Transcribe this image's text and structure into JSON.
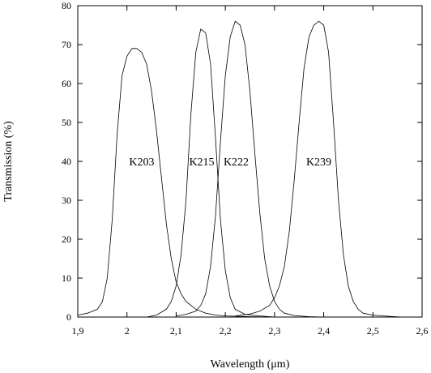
{
  "chart_data": {
    "type": "line",
    "title": "",
    "xlabel": "Wavelength (μm)",
    "ylabel": "Transmission (%)",
    "xlim": [
      1.9,
      2.6
    ],
    "ylim": [
      0,
      80
    ],
    "x_ticks": [
      1.9,
      2.0,
      2.1,
      2.2,
      2.3,
      2.4,
      2.5,
      2.6
    ],
    "x_tick_labels": [
      "1,9",
      "2",
      "2,1",
      "2,2",
      "2,3",
      "2,4",
      "2,5",
      "2,6"
    ],
    "y_ticks": [
      0,
      10,
      20,
      30,
      40,
      50,
      60,
      70,
      80
    ],
    "y_tick_labels": [
      "0",
      "10",
      "20",
      "30",
      "40",
      "50",
      "60",
      "70",
      "80"
    ],
    "grid": false,
    "legend": "none",
    "series": [
      {
        "name": "K203",
        "label_at": [
          2.03,
          40
        ],
        "x": [
          1.9,
          1.92,
          1.94,
          1.95,
          1.96,
          1.97,
          1.98,
          1.99,
          2.0,
          2.01,
          2.02,
          2.03,
          2.04,
          2.05,
          2.06,
          2.07,
          2.08,
          2.09,
          2.1,
          2.11,
          2.12,
          2.13,
          2.14,
          2.16,
          2.18,
          2.2,
          2.25,
          2.3
        ],
        "y": [
          0.5,
          1,
          2,
          4,
          10,
          25,
          47,
          62,
          67,
          69,
          69,
          68,
          65,
          58,
          48,
          36,
          24,
          15,
          9,
          6,
          4,
          3,
          2,
          1,
          0.5,
          0.3,
          0.1,
          0
        ]
      },
      {
        "name": "K215",
        "label_at": [
          2.152,
          40
        ],
        "x": [
          2.04,
          2.06,
          2.08,
          2.09,
          2.1,
          2.11,
          2.12,
          2.13,
          2.14,
          2.15,
          2.16,
          2.17,
          2.18,
          2.19,
          2.2,
          2.21,
          2.22,
          2.24,
          2.27,
          2.3
        ],
        "y": [
          0,
          0.5,
          2,
          4,
          8,
          16,
          30,
          52,
          68,
          74,
          73,
          65,
          46,
          25,
          12,
          5,
          2,
          0.7,
          0.3,
          0
        ]
      },
      {
        "name": "K222",
        "label_at": [
          2.222,
          40
        ],
        "x": [
          2.1,
          2.12,
          2.14,
          2.15,
          2.16,
          2.17,
          2.18,
          2.19,
          2.2,
          2.21,
          2.22,
          2.23,
          2.24,
          2.25,
          2.26,
          2.27,
          2.28,
          2.29,
          2.3,
          2.31,
          2.32,
          2.34,
          2.37,
          2.4
        ],
        "y": [
          0.3,
          0.7,
          1.5,
          3,
          6,
          13,
          26,
          45,
          62,
          72,
          76,
          75,
          70,
          58,
          42,
          27,
          15,
          8,
          4,
          2,
          1,
          0.4,
          0.1,
          0
        ]
      },
      {
        "name": "K239",
        "label_at": [
          2.39,
          40
        ],
        "x": [
          2.22,
          2.25,
          2.27,
          2.29,
          2.3,
          2.31,
          2.32,
          2.33,
          2.34,
          2.35,
          2.36,
          2.37,
          2.38,
          2.39,
          2.4,
          2.41,
          2.42,
          2.43,
          2.44,
          2.45,
          2.46,
          2.47,
          2.48,
          2.5,
          2.53,
          2.56
        ],
        "y": [
          0.3,
          0.8,
          1.5,
          3,
          5,
          8,
          13,
          22,
          35,
          50,
          64,
          72,
          75,
          76,
          75,
          68,
          50,
          30,
          16,
          8,
          4,
          2,
          1,
          0.5,
          0.2,
          0
        ]
      }
    ]
  }
}
